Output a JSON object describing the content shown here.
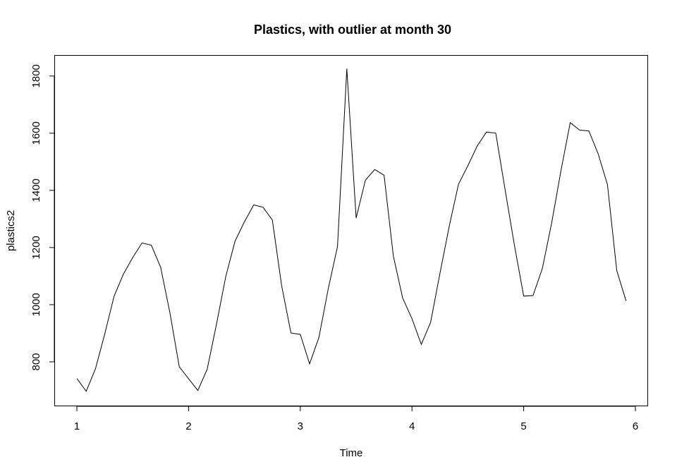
{
  "chart_data": {
    "type": "line",
    "title": "Plastics, with outlier at month 30",
    "xlabel": "Time",
    "ylabel": "plastics2",
    "xlim": [
      1,
      6
    ],
    "ylim": [
      690,
      1830
    ],
    "x_ticks": [
      "1",
      "2",
      "3",
      "4",
      "5",
      "6"
    ],
    "y_ticks": [
      "800",
      "1000",
      "1200",
      "1400",
      "1600",
      "1800"
    ],
    "grid": false,
    "series": [
      {
        "x": [
          1.0,
          1.0833,
          1.1667,
          1.25,
          1.3333,
          1.4167,
          1.5,
          1.5833,
          1.6667,
          1.75,
          1.8333,
          1.9167,
          2.0,
          2.0833,
          2.1667,
          2.25,
          2.3333,
          2.4167,
          2.5,
          2.5833,
          2.6667,
          2.75,
          2.8333,
          2.9167,
          3.0,
          3.0833,
          3.1667,
          3.25,
          3.3333,
          3.4167,
          3.5,
          3.5833,
          3.6667,
          3.75,
          3.8333,
          3.9167,
          4.0,
          4.0833,
          4.1667,
          4.25,
          4.3333,
          4.4167,
          4.5,
          4.5833,
          4.6667,
          4.75,
          4.8333,
          4.9167,
          5.0,
          5.0833,
          5.1667,
          5.25,
          5.3333,
          5.4167,
          5.5,
          5.5833,
          5.6667,
          5.75,
          5.8333,
          5.9167
        ],
        "values": [
          742,
          697,
          776,
          898,
          1030,
          1107,
          1165,
          1216,
          1208,
          1131,
          971,
          783,
          741,
          700,
          774,
          932,
          1099,
          1223,
          1290,
          1349,
          1341,
          1296,
          1066,
          901,
          896,
          793,
          885,
          1055,
          1204,
          1826,
          1303,
          1436,
          1473,
          1453,
          1170,
          1023,
          951,
          861,
          938,
          1109,
          1274,
          1422,
          1486,
          1555,
          1604,
          1600,
          1403,
          1209,
          1030,
          1032,
          1126,
          1285,
          1468,
          1637,
          1611,
          1608,
          1528,
          1420,
          1119,
          1013
        ]
      }
    ]
  }
}
